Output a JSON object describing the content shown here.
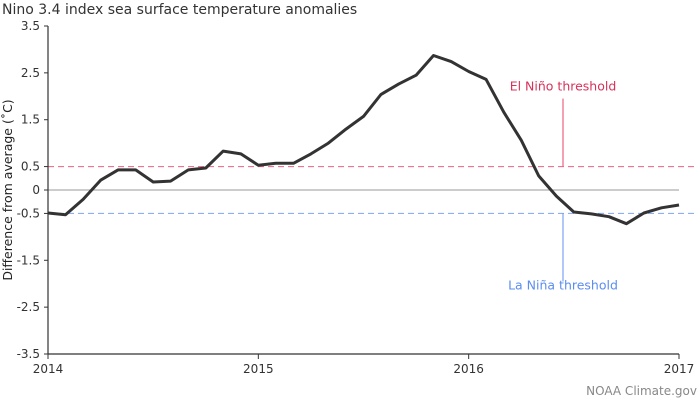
{
  "chart_data": {
    "type": "line",
    "title": "Nino 3.4 index sea surface temperature anomalies",
    "ylabel": "Difference from average (˚C)",
    "xlabel": "",
    "ylim": [
      -3.5,
      3.5
    ],
    "xlim": [
      2014,
      2017
    ],
    "y_ticks": [
      "3.5",
      "2.5",
      "1.5",
      "0.5",
      "0",
      "-0.5",
      "-1.5",
      "-2.5",
      "-3.5"
    ],
    "y_tick_values": [
      3.5,
      2.5,
      1.5,
      0.5,
      0,
      -0.5,
      -1.5,
      -2.5,
      -3.5
    ],
    "x_ticks": [
      "2014",
      "2015",
      "2016",
      "2017"
    ],
    "x_tick_values": [
      2014,
      2015,
      2016,
      2017
    ],
    "grid": false,
    "line_color": "#333333",
    "x": [
      2014.0,
      2014.083,
      2014.167,
      2014.25,
      2014.333,
      2014.417,
      2014.5,
      2014.583,
      2014.667,
      2014.75,
      2014.833,
      2014.917,
      2015.0,
      2015.083,
      2015.167,
      2015.25,
      2015.333,
      2015.417,
      2015.5,
      2015.583,
      2015.667,
      2015.75,
      2015.833,
      2015.917,
      2016.0,
      2016.083,
      2016.167,
      2016.25,
      2016.333,
      2016.417,
      2016.5,
      2016.583,
      2016.667,
      2016.75,
      2016.833,
      2016.917,
      2017.0
    ],
    "values": [
      -0.49,
      -0.53,
      -0.2,
      0.21,
      0.43,
      0.43,
      0.17,
      0.19,
      0.43,
      0.47,
      0.83,
      0.77,
      0.53,
      0.57,
      0.57,
      0.77,
      1.0,
      1.3,
      1.57,
      2.04,
      2.26,
      2.45,
      2.87,
      2.74,
      2.53,
      2.36,
      1.66,
      1.06,
      0.3,
      -0.13,
      -0.47,
      -0.51,
      -0.57,
      -0.72,
      -0.49,
      -0.38,
      -0.32
    ],
    "annotations": [
      {
        "label": "El Niño threshold",
        "value": 0.5,
        "color": "#d8315b",
        "line_color": "#ee6080"
      },
      {
        "label": "La Niña threshold",
        "value": -0.5,
        "color": "#5b8df0",
        "line_color": "#7fa4f5"
      }
    ],
    "zero_line_color": "#999999"
  },
  "credit": "NOAA Climate.gov"
}
